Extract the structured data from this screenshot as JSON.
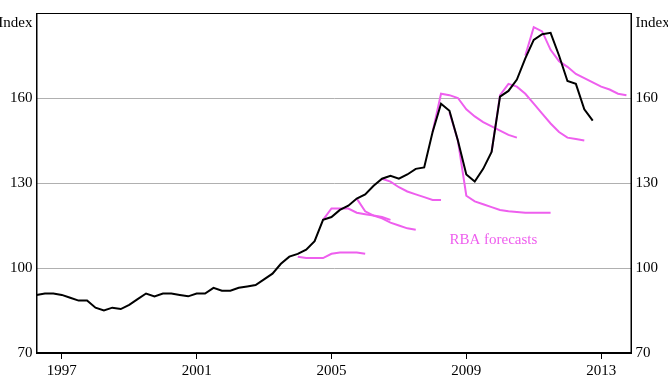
{
  "chart_data": {
    "type": "line",
    "ylabel": "Index",
    "y2label": "Index",
    "xlim": [
      1996.25,
      2013.9
    ],
    "xticks": [
      1997,
      2001,
      2005,
      2009,
      2013
    ],
    "ylim": [
      70,
      190
    ],
    "yticks": [
      70,
      100,
      130,
      160
    ],
    "y2lim": [
      70,
      190
    ],
    "y2ticks": [
      70,
      100,
      130,
      160
    ],
    "grid": true,
    "annotations": [
      {
        "text": "RBA forecasts",
        "x": 2008.5,
        "y": 110,
        "color": "#ee5fee"
      }
    ],
    "series": [
      {
        "color": "#000000",
        "line_style": "solid",
        "x": [
          1996.25,
          1996.5,
          1996.75,
          1997.0,
          1997.25,
          1997.5,
          1997.75,
          1998.0,
          1998.25,
          1998.5,
          1998.75,
          1999.0,
          1999.25,
          1999.5,
          1999.75,
          2000.0,
          2000.25,
          2000.5,
          2000.75,
          2001.0,
          2001.25,
          2001.5,
          2001.75,
          2002.0,
          2002.25,
          2002.5,
          2002.75,
          2003.0,
          2003.25,
          2003.5,
          2003.75,
          2004.0,
          2004.25,
          2004.5,
          2004.75,
          2005.0,
          2005.25,
          2005.5,
          2005.75,
          2006.0,
          2006.25,
          2006.5,
          2006.75,
          2007.0,
          2007.25,
          2007.5,
          2007.75,
          2008.0,
          2008.25,
          2008.5,
          2008.75,
          2009.0,
          2009.25,
          2009.5,
          2009.75,
          2010.0,
          2010.25,
          2010.5,
          2010.75,
          2011.0,
          2011.25,
          2011.5,
          2011.75,
          2012.0,
          2012.25,
          2012.5,
          2012.75
        ],
        "values": [
          90.5,
          91,
          91,
          90.5,
          89.5,
          88.5,
          88.5,
          86,
          85,
          86,
          85.5,
          87,
          89,
          91,
          90,
          91,
          91,
          90.5,
          90,
          91,
          91,
          93,
          92,
          92,
          93,
          93.5,
          94,
          96,
          98,
          101.5,
          104,
          105,
          106.5,
          109.5,
          117,
          118,
          120.5,
          122,
          124.5,
          126,
          129,
          131.5,
          132.5,
          131.5,
          133,
          135,
          135.5,
          148,
          158,
          155.5,
          145,
          133,
          130.5,
          135,
          141,
          160.5,
          162.5,
          166.5,
          174,
          180.5,
          182.5,
          183,
          175,
          166,
          165,
          156,
          152
        ]
      },
      {
        "color": "#ee5fee",
        "line_style": "solid",
        "x": [
          2004.0,
          2004.25,
          2004.5,
          2004.75,
          2005.0,
          2005.25,
          2005.5,
          2005.75,
          2006.0
        ],
        "values": [
          104,
          103.5,
          103.5,
          103.5,
          105,
          105.5,
          105.5,
          105.5,
          105
        ]
      },
      {
        "color": "#ee5fee",
        "line_style": "solid",
        "x": [
          2004.75,
          2005.0,
          2005.25,
          2005.5,
          2005.75,
          2006.0,
          2006.25,
          2006.5,
          2006.75
        ],
        "values": [
          117,
          121,
          121,
          121,
          119.5,
          119,
          118.5,
          118,
          117
        ]
      },
      {
        "color": "#ee5fee",
        "line_style": "solid",
        "x": [
          2005.75,
          2006.0,
          2006.25,
          2006.5,
          2006.75,
          2007.0,
          2007.25,
          2007.5
        ],
        "values": [
          124.5,
          120,
          118.5,
          117.5,
          116,
          115,
          114,
          113.5
        ]
      },
      {
        "color": "#ee5fee",
        "line_style": "solid",
        "x": [
          2006.5,
          2006.75,
          2007.0,
          2007.25,
          2007.5,
          2007.75,
          2008.0,
          2008.25
        ],
        "values": [
          131.5,
          130.5,
          128.5,
          127,
          126,
          125,
          124,
          124
        ]
      },
      {
        "color": "#ee5fee",
        "line_style": "solid",
        "x": [
          2008.0,
          2008.25,
          2008.5,
          2008.75,
          2009.0,
          2009.25,
          2009.5,
          2009.75,
          2010.0,
          2010.25,
          2010.5
        ],
        "values": [
          148,
          161.5,
          161,
          160,
          156,
          153.5,
          151.5,
          150,
          148.5,
          147,
          146
        ]
      },
      {
        "color": "#ee5fee",
        "line_style": "solid",
        "x": [
          2008.5,
          2008.75,
          2009.0,
          2009.25,
          2009.5,
          2009.75,
          2010.0,
          2010.25,
          2010.5,
          2010.75,
          2011.0,
          2011.25,
          2011.5
        ],
        "values": [
          155,
          145,
          125.5,
          123.5,
          122.5,
          121.5,
          120.5,
          120,
          119.8,
          119.5,
          119.5,
          119.5,
          119.5
        ]
      },
      {
        "color": "#ee5fee",
        "line_style": "solid",
        "x": [
          2009.75,
          2010.0,
          2010.25,
          2010.5,
          2010.75,
          2011.0,
          2011.25,
          2011.5,
          2011.75,
          2012.0,
          2012.25,
          2012.5
        ],
        "values": [
          141,
          161,
          165,
          164,
          161.5,
          158,
          154.5,
          151,
          148,
          146,
          145.5,
          145
        ]
      },
      {
        "color": "#ee5fee",
        "line_style": "solid",
        "x": [
          2010.75,
          2011.0,
          2011.25,
          2011.5,
          2011.75,
          2012.0,
          2012.25,
          2012.5,
          2012.75,
          2013.0,
          2013.25,
          2013.5,
          2013.75
        ],
        "values": [
          175,
          185,
          183.5,
          177,
          173,
          171,
          168.5,
          167,
          165.5,
          164,
          163,
          161.5,
          161
        ]
      }
    ]
  }
}
